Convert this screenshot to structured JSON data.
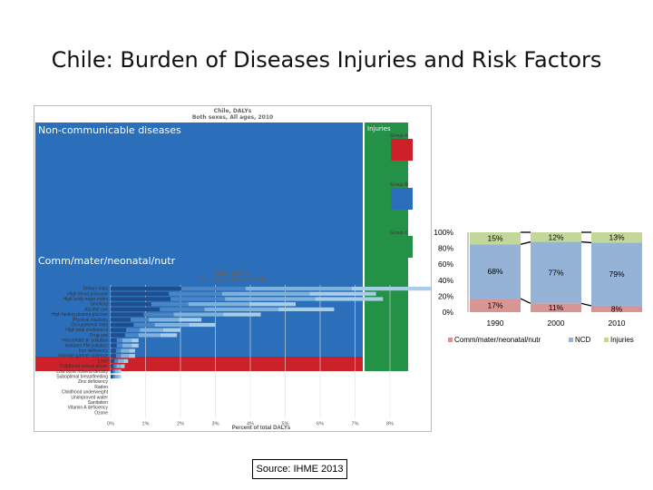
{
  "slide_title": "Chile: Burden of Diseases Injuries and Risk Factors",
  "treemap": {
    "title": "Chile, DALYs",
    "subtitle": "Both sexes, All ages, 2010",
    "ncd_label": "Non-communicable diseases",
    "comm_label": "Comm/mater/neonatal/nutr",
    "inj_label": "Injuries",
    "groups": [
      {
        "label": "Group A",
        "color": "#cc2129"
      },
      {
        "label": "Group B",
        "color": "#2b6fbb"
      },
      {
        "label": "Group C",
        "color": "#239247"
      }
    ]
  },
  "risk_chart": {
    "title": "Chile, DALYs",
    "subtitle": "Both sexes, All ages, 2010",
    "xlabel": "Percent of total DALYs",
    "xticks": [
      "0%",
      "1%",
      "2%",
      "3%",
      "4%",
      "5%",
      "6%",
      "7%",
      "8%"
    ],
    "factors": [
      {
        "label": "Dietary risks",
        "value": 9.2
      },
      {
        "label": "High blood pressure",
        "value": 7.6
      },
      {
        "label": "High body-mass index",
        "value": 7.8
      },
      {
        "label": "Smoking",
        "value": 5.3
      },
      {
        "label": "Alcohol use",
        "value": 6.4
      },
      {
        "label": "High fasting plasma glucose",
        "value": 4.3
      },
      {
        "label": "Physical inactivity",
        "value": 2.6
      },
      {
        "label": "Occupational risks",
        "value": 3.0
      },
      {
        "label": "High total cholesterol",
        "value": 2.0
      },
      {
        "label": "Drug use",
        "value": 1.9
      },
      {
        "label": "Household air pollution",
        "value": 0.8
      },
      {
        "label": "Ambient PM pollution",
        "value": 0.8
      },
      {
        "label": "Iron deficiency",
        "value": 0.7
      },
      {
        "label": "Intimate partner violence",
        "value": 0.7
      },
      {
        "label": "Lead",
        "value": 0.5
      },
      {
        "label": "Childhood sexual abuse",
        "value": 0.4
      },
      {
        "label": "Low bone mineral density",
        "value": 0.3
      },
      {
        "label": "Suboptimal breastfeeding",
        "value": 0.3
      },
      {
        "label": "Zinc deficiency",
        "value": 0.0
      },
      {
        "label": "Radon",
        "value": 0.0
      },
      {
        "label": "Childhood underweight",
        "value": 0.0
      },
      {
        "label": "Unimproved water",
        "value": 0.0
      },
      {
        "label": "Sanitation",
        "value": 0.0
      },
      {
        "label": "Vitamin A deficiency",
        "value": 0.0
      },
      {
        "label": "Ozone",
        "value": 0.0
      }
    ]
  },
  "chart_data": {
    "type": "bar",
    "categories": [
      "1990",
      "2000",
      "2010"
    ],
    "series": [
      {
        "name": "Comm/mater/neonatal/nutr",
        "values": [
          17,
          11,
          8
        ],
        "labels": [
          "17%",
          "11%",
          "8%"
        ],
        "color": "#d99594"
      },
      {
        "name": "NCD",
        "values": [
          68,
          77,
          79
        ],
        "labels": [
          "68%",
          "77%",
          "79%"
        ],
        "color": "#95b3d7"
      },
      {
        "name": "Injuries",
        "values": [
          15,
          12,
          13
        ],
        "labels": [
          "15%",
          "12%",
          "13%"
        ],
        "color": "#c4d79b"
      }
    ],
    "yticks": [
      "0%",
      "20%",
      "40%",
      "60%",
      "80%",
      "100%"
    ],
    "ylim": [
      0,
      100
    ],
    "legend": "bottom"
  },
  "source": "Source: IHME 2013"
}
